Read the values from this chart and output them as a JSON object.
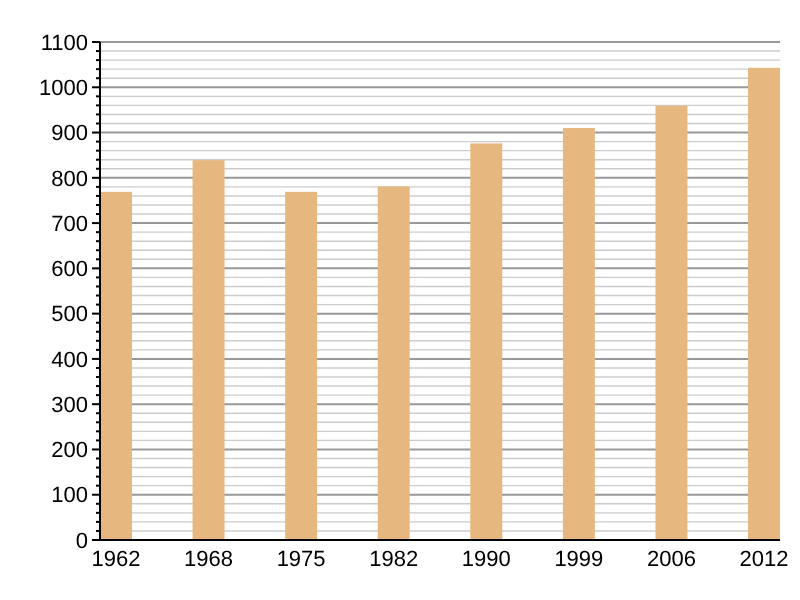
{
  "chart_data": {
    "type": "bar",
    "categories": [
      "1962",
      "1968",
      "1975",
      "1982",
      "1990",
      "1999",
      "2006",
      "2012"
    ],
    "values": [
      769,
      839,
      769,
      781,
      876,
      910,
      959,
      1043
    ],
    "color": "#e6b77e",
    "ylim": [
      0,
      1100
    ],
    "yticks": [
      0,
      {
        "value": 20,
        "label": null
      },
      {
        "value": 40,
        "label": null
      },
      {
        "value": 60,
        "label": null
      },
      {
        "value": 80,
        "label": null
      },
      100,
      {
        "value": 120,
        "label": null
      },
      {
        "value": 140,
        "label": null
      },
      {
        "value": 160,
        "label": null
      },
      {
        "value": 180,
        "label": null
      },
      200,
      {
        "value": 220,
        "label": null
      },
      {
        "value": 240,
        "label": null
      },
      {
        "value": 260,
        "label": null
      },
      {
        "value": 280,
        "label": null
      },
      300,
      {
        "value": 320,
        "label": null
      },
      {
        "value": 340,
        "label": null
      },
      {
        "value": 360,
        "label": null
      },
      {
        "value": 380,
        "label": null
      },
      400,
      {
        "value": 420,
        "label": null
      },
      {
        "value": 440,
        "label": null
      },
      {
        "value": 460,
        "label": null
      },
      {
        "value": 480,
        "label": null
      },
      500,
      {
        "value": 520,
        "label": null
      },
      {
        "value": 540,
        "label": null
      },
      {
        "value": 560,
        "label": null
      },
      {
        "value": 580,
        "label": null
      },
      600,
      {
        "value": 620,
        "label": null
      },
      {
        "value": 640,
        "label": null
      },
      {
        "value": 660,
        "label": null
      },
      {
        "value": 680,
        "label": null
      },
      700,
      {
        "value": 720,
        "label": null
      },
      {
        "value": 740,
        "label": null
      },
      {
        "value": 760,
        "label": null
      },
      {
        "value": 780,
        "label": null
      },
      800,
      {
        "value": 820,
        "label": null
      },
      {
        "value": 840,
        "label": null
      },
      {
        "value": 860,
        "label": null
      },
      {
        "value": 880,
        "label": null
      },
      900,
      {
        "value": 920,
        "label": null
      },
      {
        "value": 940,
        "label": null
      },
      {
        "value": 960,
        "label": null
      },
      {
        "value": 980,
        "label": null
      },
      1000,
      {
        "value": 1020,
        "label": null
      },
      {
        "value": 1040,
        "label": null
      },
      {
        "value": 1060,
        "label": null
      },
      {
        "value": 1080,
        "label": null
      },
      1100
    ],
    "grid": "y"
  }
}
